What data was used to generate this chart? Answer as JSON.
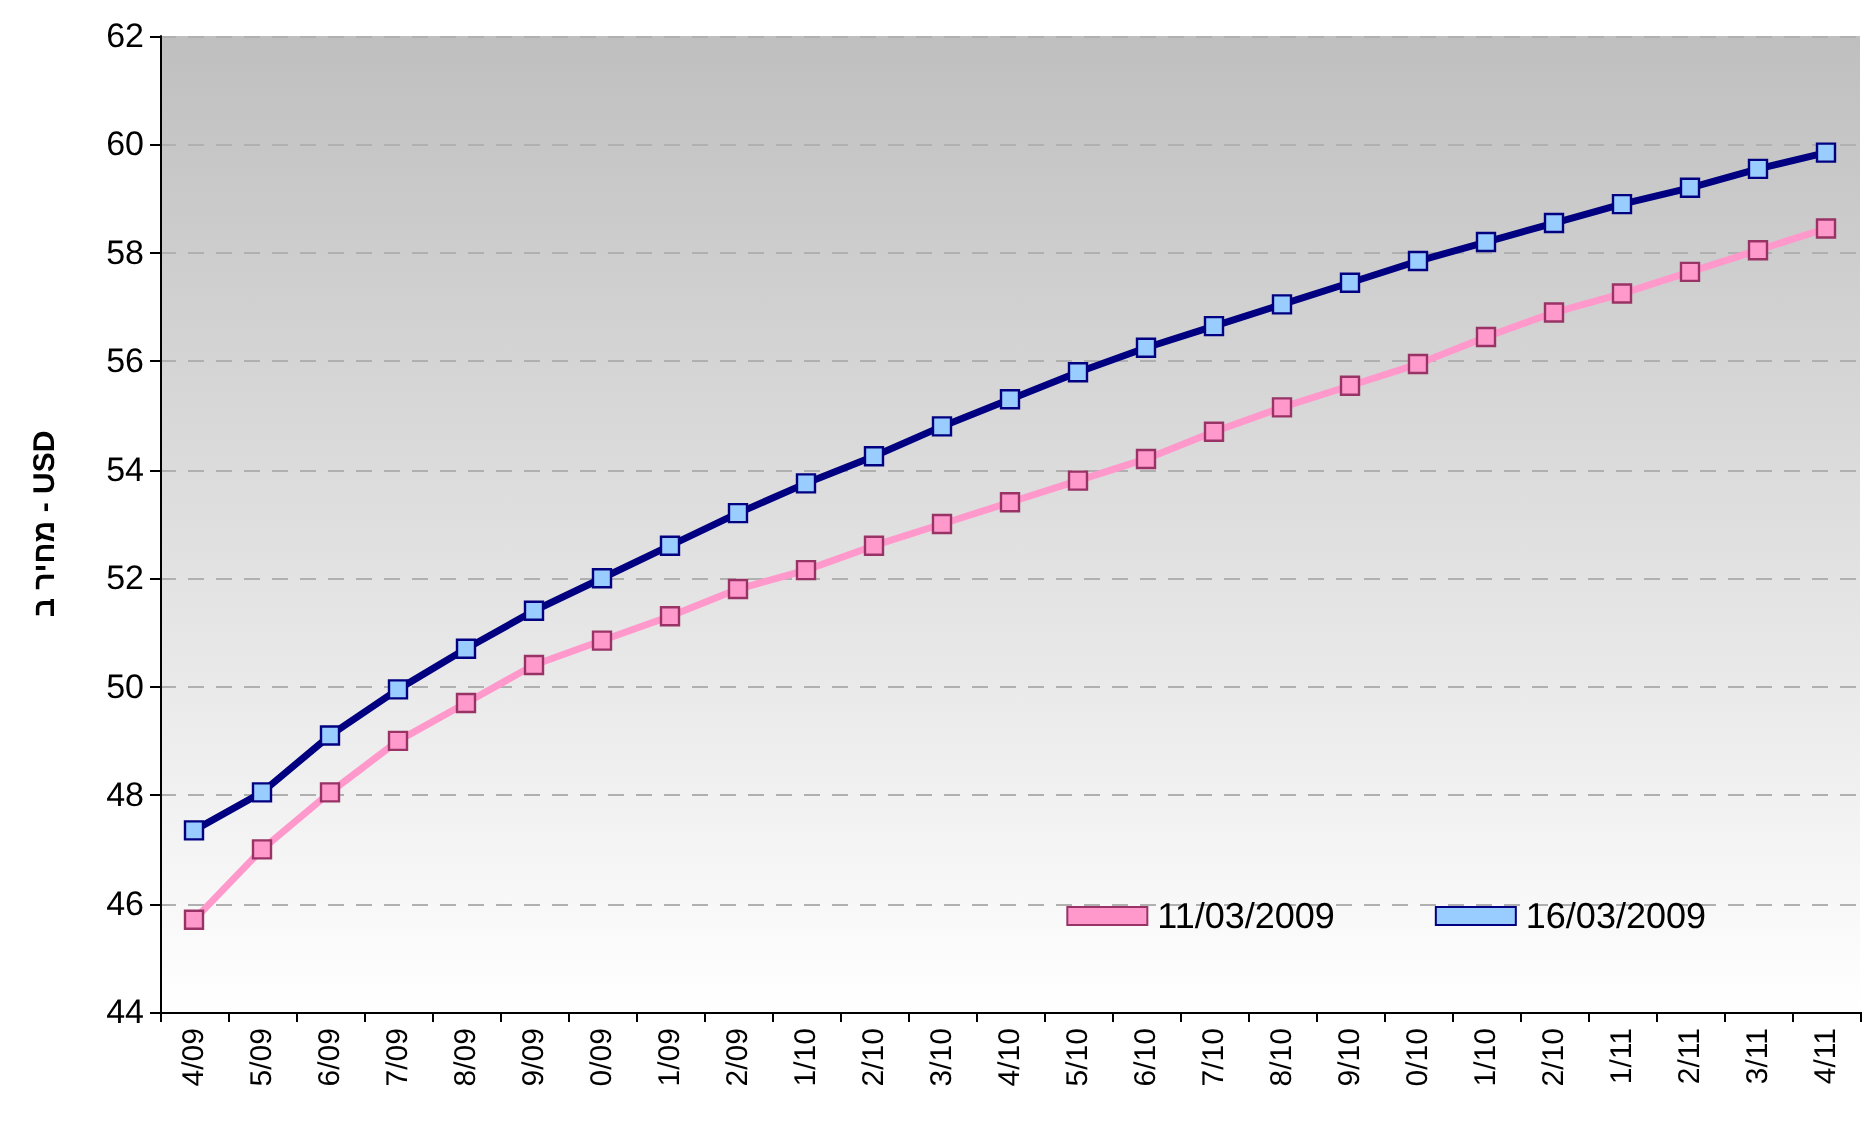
{
  "chart_data": {
    "type": "line",
    "ylabel": "מחיר ב - USD",
    "categories": [
      "4/09",
      "5/09",
      "6/09",
      "7/09",
      "8/09",
      "9/09",
      "0/09",
      "1/09",
      "2/09",
      "1/10",
      "2/10",
      "3/10",
      "4/10",
      "5/10",
      "6/10",
      "7/10",
      "8/10",
      "9/10",
      "0/10",
      "1/10",
      "2/10",
      "1/11",
      "2/11",
      "3/11",
      "4/11"
    ],
    "series": [
      {
        "name": "11/03/2009",
        "color": "#ff99cc",
        "values": [
          45.7,
          47.0,
          48.05,
          49.0,
          49.7,
          50.4,
          50.85,
          51.3,
          51.8,
          52.15,
          52.6,
          53.0,
          53.4,
          53.8,
          54.2,
          54.7,
          55.15,
          55.55,
          55.95,
          56.45,
          56.9,
          57.25,
          57.65,
          58.05,
          58.45
        ]
      },
      {
        "name": "16/03/2009",
        "color": "#000080",
        "values": [
          47.35,
          48.05,
          49.1,
          49.95,
          50.7,
          51.4,
          52.0,
          52.6,
          53.2,
          53.75,
          54.25,
          54.8,
          55.3,
          55.8,
          56.25,
          56.65,
          57.05,
          57.45,
          57.85,
          58.2,
          58.55,
          58.9,
          59.2,
          59.55,
          59.85
        ]
      }
    ],
    "ylim": [
      44,
      62
    ],
    "yticks": [
      44,
      46,
      48,
      50,
      52,
      54,
      56,
      58,
      60,
      62
    ],
    "grid": "y",
    "legend": "bottom right",
    "marker": "square",
    "line_style": "solid"
  }
}
